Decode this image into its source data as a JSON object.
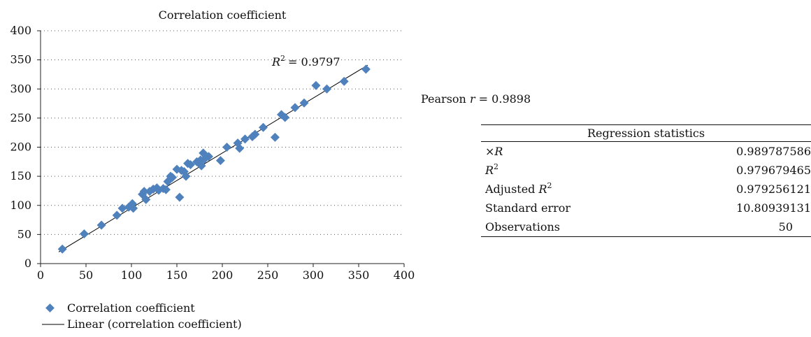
{
  "chart_data": {
    "type": "scatter",
    "title": "Correlation coefficient",
    "xlim": [
      0,
      400
    ],
    "ylim": [
      0,
      400
    ],
    "xticks": [
      "0",
      "50",
      "100",
      "150",
      "200",
      "250",
      "300",
      "350",
      "400"
    ],
    "yticks": [
      "0",
      "50",
      "100",
      "150",
      "200",
      "250",
      "300",
      "350",
      "400"
    ],
    "grid": "horizontal dotted",
    "series": [
      {
        "name": "Correlation coefficient",
        "marker": "diamond",
        "color": "#4f81bd",
        "points": [
          [
            24,
            25
          ],
          [
            48,
            51
          ],
          [
            67,
            66
          ],
          [
            84,
            83
          ],
          [
            90,
            95
          ],
          [
            97,
            97
          ],
          [
            101,
            103
          ],
          [
            102,
            95
          ],
          [
            112,
            119
          ],
          [
            114,
            124
          ],
          [
            116,
            110
          ],
          [
            124,
            128
          ],
          [
            128,
            130
          ],
          [
            130,
            126
          ],
          [
            135,
            129
          ],
          [
            138,
            127
          ],
          [
            140,
            141
          ],
          [
            143,
            150
          ],
          [
            150,
            162
          ],
          [
            153,
            114
          ],
          [
            155,
            160
          ],
          [
            158,
            158
          ],
          [
            160,
            150
          ],
          [
            162,
            172
          ],
          [
            172,
            175
          ],
          [
            176,
            178
          ],
          [
            177,
            168
          ],
          [
            179,
            190
          ],
          [
            180,
            179
          ],
          [
            198,
            177
          ],
          [
            217,
            207
          ],
          [
            219,
            198
          ],
          [
            233,
            218
          ],
          [
            236,
            222
          ],
          [
            258,
            217
          ],
          [
            265,
            256
          ],
          [
            269,
            251
          ],
          [
            290,
            276
          ],
          [
            303,
            306
          ],
          [
            334,
            313
          ],
          [
            358,
            334
          ],
          [
            120,
            124
          ],
          [
            145,
            148
          ],
          [
            165,
            170
          ],
          [
            185,
            184
          ],
          [
            205,
            200
          ],
          [
            225,
            214
          ],
          [
            245,
            234
          ],
          [
            280,
            268
          ],
          [
            315,
            300
          ]
        ]
      },
      {
        "name": "Linear (correlation coefficient)",
        "line": [
          [
            20,
            20
          ],
          [
            360,
            341
          ]
        ],
        "color": "#000000"
      }
    ],
    "annotation": {
      "r2_label": "R",
      "r2_sup": "2",
      "r2_value": "= 0.9797"
    },
    "legend": {
      "position": "bottom",
      "items": [
        "Correlation coefficient",
        "Linear (correlation coefficient)"
      ]
    }
  },
  "pearson": {
    "prefix": "Pearson ",
    "var": "r",
    "value": " = 0.9898"
  },
  "regression_stats": {
    "header": "Regression statistics",
    "rows": [
      {
        "label": "×R",
        "value": "0.989787586"
      },
      {
        "label": "R",
        "sup": "2",
        "value": "0.979679465"
      },
      {
        "label": "Adjusted R",
        "sup": "2",
        "value": "0.979256121"
      },
      {
        "label": "Standard error",
        "value": "10.80939131"
      },
      {
        "label": "Observations",
        "value": "50"
      }
    ]
  }
}
